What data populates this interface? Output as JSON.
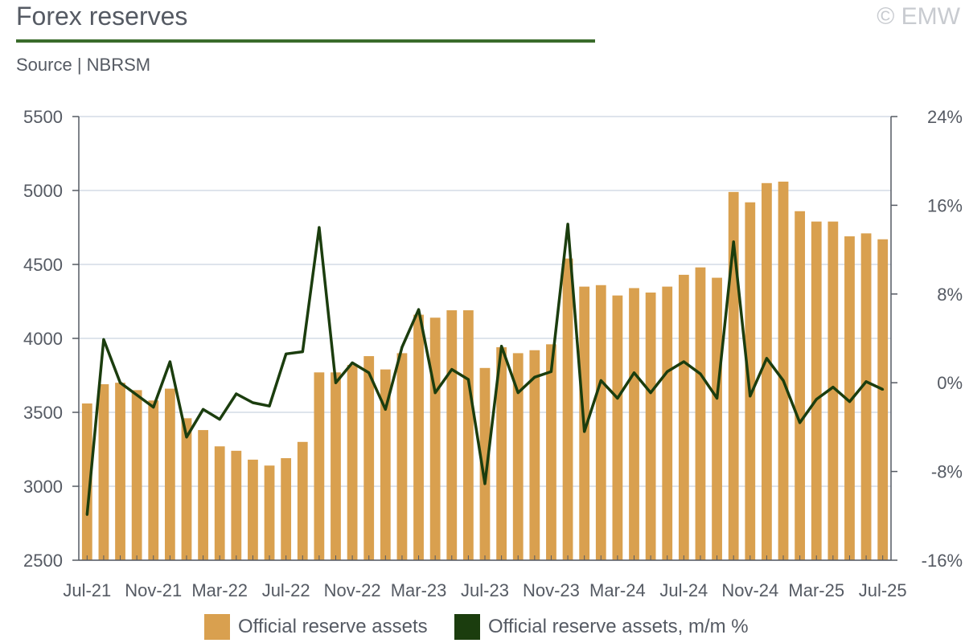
{
  "header": {
    "title": "Forex reserves",
    "source": "Source | NBRSM",
    "copyright": "© EMW"
  },
  "colors": {
    "bar": "#d9a04f",
    "line": "#1b3d0e",
    "title_rule": "#3a6b2b",
    "grid": "#d3dce6",
    "axis": "#555a63"
  },
  "legend": {
    "bars_label": "Official reserve assets",
    "line_label": "Official reserve assets, m/m %"
  },
  "chart_data": {
    "type": "bar+line",
    "title": "Forex reserves",
    "x_tick_labels": [
      "Jul-21",
      "Nov-21",
      "Mar-22",
      "Jul-22",
      "Nov-22",
      "Mar-23",
      "Jul-23",
      "Nov-23",
      "Mar-24",
      "Jul-24",
      "Nov-24",
      "Mar-25",
      "Jul-25"
    ],
    "y_left": {
      "ylim": [
        2500,
        5500
      ],
      "ticks": [
        "2500",
        "3000",
        "3500",
        "4000",
        "4500",
        "5000",
        "5500"
      ],
      "tick_values": [
        2500,
        3000,
        3500,
        4000,
        4500,
        5000,
        5500
      ]
    },
    "y_right": {
      "ylim": [
        -16,
        24
      ],
      "ticks": [
        "-16%",
        "-8%",
        "0%",
        "8%",
        "16%",
        "24%"
      ],
      "tick_values": [
        -16,
        -8,
        0,
        8,
        16,
        24
      ]
    },
    "grid": true,
    "legend_position": "bottom",
    "categories": [
      "Jul-21",
      "Aug-21",
      "Sep-21",
      "Oct-21",
      "Nov-21",
      "Dec-21",
      "Jan-22",
      "Feb-22",
      "Mar-22",
      "Apr-22",
      "May-22",
      "Jun-22",
      "Jul-22",
      "Aug-22",
      "Sep-22",
      "Oct-22",
      "Nov-22",
      "Dec-22",
      "Jan-23",
      "Feb-23",
      "Mar-23",
      "Apr-23",
      "May-23",
      "Jun-23",
      "Jul-23",
      "Aug-23",
      "Sep-23",
      "Oct-23",
      "Nov-23",
      "Dec-23",
      "Jan-24",
      "Feb-24",
      "Mar-24",
      "Apr-24",
      "May-24",
      "Jun-24",
      "Jul-24",
      "Aug-24",
      "Sep-24",
      "Oct-24",
      "Nov-24",
      "Dec-24",
      "Jan-25",
      "Feb-25",
      "Mar-25",
      "Apr-25",
      "May-25",
      "Jun-25",
      "Jul-25"
    ],
    "series": [
      {
        "name": "Official reserve assets",
        "axis": "left",
        "type": "bar",
        "values": [
          3560,
          3690,
          3700,
          3650,
          3580,
          3660,
          3460,
          3380,
          3270,
          3240,
          3180,
          3140,
          3190,
          3300,
          3770,
          3770,
          3820,
          3880,
          3790,
          3900,
          4160,
          4140,
          4190,
          4190,
          3800,
          3940,
          3900,
          3920,
          3960,
          4540,
          4350,
          4360,
          4290,
          4340,
          4310,
          4350,
          4430,
          4480,
          4410,
          4990,
          4920,
          5050,
          5060,
          4860,
          4790,
          4790,
          4690,
          4710,
          4670
        ]
      },
      {
        "name": "Official reserve assets, m/m %",
        "axis": "right",
        "type": "line",
        "values": [
          -11.9,
          3.9,
          0,
          -1.1,
          -2.2,
          1.9,
          -4.9,
          -2.4,
          -3.3,
          -1.0,
          -1.8,
          -2.1,
          2.6,
          2.8,
          14.0,
          0,
          1.8,
          0.9,
          -2.4,
          3.2,
          6.6,
          -0.9,
          1.2,
          0.3,
          -9.1,
          3.3,
          -0.9,
          0.5,
          1.0,
          14.3,
          -4.4,
          0.2,
          -1.4,
          0.9,
          -0.9,
          1.0,
          1.9,
          0.8,
          -1.4,
          12.7,
          -1.2,
          2.2,
          0.2,
          -3.6,
          -1.5,
          -0.4,
          -1.7,
          0.1,
          -0.6
        ]
      }
    ]
  }
}
